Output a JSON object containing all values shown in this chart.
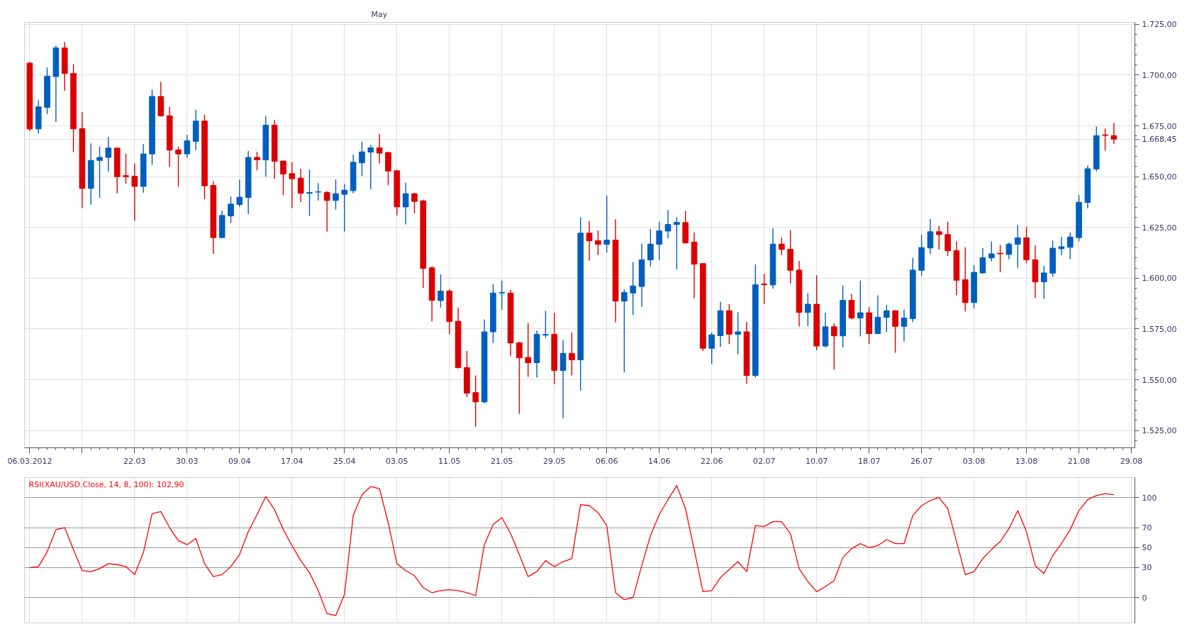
{
  "chart_data": [
    {
      "type": "candlestick",
      "categories": [
        "06.03.2012",
        null,
        null,
        null,
        null,
        null,
        null,
        null,
        null,
        null,
        null,
        null,
        "22.03",
        null,
        null,
        null,
        null,
        null,
        "30.03",
        null,
        null,
        null,
        null,
        null,
        "09.04",
        null,
        null,
        null,
        null,
        null,
        "17.04",
        null,
        null,
        null,
        null,
        null,
        "25.04",
        null,
        null,
        null,
        null,
        null,
        "03.05",
        null,
        null,
        null,
        null,
        null,
        "11.05",
        null,
        null,
        null,
        null,
        null,
        "21.05",
        null,
        null,
        null,
        null,
        null,
        "29.05",
        null,
        null,
        null,
        null,
        null,
        "06.06",
        null,
        null,
        null,
        null,
        null,
        "14.06",
        null,
        null,
        null,
        null,
        null,
        "22.06",
        null,
        null,
        null,
        null,
        null,
        "02.07",
        null,
        null,
        null,
        null,
        null,
        "10.07",
        null,
        null,
        null,
        null,
        null,
        "18.07",
        null,
        null,
        null,
        null,
        null,
        "26.07",
        null,
        null,
        null,
        null,
        null,
        "03.08",
        null,
        null,
        null,
        null,
        null,
        "13.08",
        null,
        null,
        null,
        null,
        null,
        "21.08",
        null,
        null,
        null,
        null,
        null,
        "29.08"
      ],
      "ohlc": [
        [
          1705.9,
          1706.5,
          1672.5,
          1673.5
        ],
        [
          1673.5,
          1687.7,
          1671.3,
          1684.4
        ],
        [
          1684.1,
          1703.7,
          1680.8,
          1699.5
        ],
        [
          1699.3,
          1714.6,
          1676.9,
          1713.4
        ],
        [
          1713.4,
          1716.3,
          1692.4,
          1700.8
        ],
        [
          1700.8,
          1705.4,
          1662.1,
          1673.5
        ],
        [
          1673.7,
          1681.9,
          1634.5,
          1644.2
        ],
        [
          1644.2,
          1666.4,
          1636.3,
          1658.0
        ],
        [
          1658.0,
          1664.8,
          1639.6,
          1659.5
        ],
        [
          1659.5,
          1669.6,
          1652.5,
          1664.1
        ],
        [
          1664.1,
          1664.2,
          1641.8,
          1650.0
        ],
        [
          1650.5,
          1661.3,
          1646.5,
          1650.0
        ],
        [
          1650.2,
          1656.5,
          1628.3,
          1645.2
        ],
        [
          1645.2,
          1666.0,
          1642.1,
          1661.2
        ],
        [
          1661.2,
          1692.8,
          1655.8,
          1689.5
        ],
        [
          1689.5,
          1696.7,
          1679.6,
          1680.0
        ],
        [
          1680.0,
          1684.4,
          1654.8,
          1663.1
        ],
        [
          1663.2,
          1664.8,
          1645.2,
          1661.2
        ],
        [
          1661.2,
          1670.6,
          1659.3,
          1667.7
        ],
        [
          1667.4,
          1683.0,
          1663.1,
          1677.4
        ],
        [
          1677.4,
          1680.5,
          1638.9,
          1645.5
        ],
        [
          1645.7,
          1647.8,
          1612.0,
          1620.0
        ],
        [
          1620.0,
          1633.3,
          1619.7,
          1630.9
        ],
        [
          1630.7,
          1640.3,
          1627.3,
          1636.5
        ],
        [
          1636.3,
          1648.6,
          1635.1,
          1639.9
        ],
        [
          1639.7,
          1662.6,
          1631.6,
          1659.5
        ],
        [
          1659.5,
          1662.2,
          1653.1,
          1658.3
        ],
        [
          1658.3,
          1679.8,
          1650.0,
          1675.4
        ],
        [
          1675.4,
          1677.9,
          1649.0,
          1657.6
        ],
        [
          1657.7,
          1658.0,
          1640.9,
          1651.3
        ],
        [
          1651.5,
          1657.1,
          1634.5,
          1649.0
        ],
        [
          1649.3,
          1653.9,
          1637.5,
          1641.8
        ],
        [
          1641.8,
          1653.4,
          1630.7,
          1642.2
        ],
        [
          1642.4,
          1646.8,
          1638.3,
          1642.6
        ],
        [
          1642.3,
          1642.8,
          1623.0,
          1638.3
        ],
        [
          1638.3,
          1648.7,
          1633.8,
          1641.6
        ],
        [
          1641.3,
          1646.4,
          1623.0,
          1643.4
        ],
        [
          1643.1,
          1660.9,
          1641.8,
          1657.1
        ],
        [
          1656.8,
          1667.1,
          1650.3,
          1662.2
        ],
        [
          1662.1,
          1665.7,
          1643.8,
          1664.2
        ],
        [
          1664.2,
          1671.0,
          1656.5,
          1661.6
        ],
        [
          1661.9,
          1662.3,
          1645.7,
          1652.8
        ],
        [
          1652.9,
          1653.4,
          1630.9,
          1635.1
        ],
        [
          1635.1,
          1647.1,
          1626.5,
          1641.6
        ],
        [
          1641.6,
          1642.1,
          1632.0,
          1637.8
        ],
        [
          1638.1,
          1638.7,
          1595.2,
          1604.8
        ],
        [
          1605.1,
          1605.9,
          1578.7,
          1589.1
        ],
        [
          1589.0,
          1601.9,
          1585.5,
          1593.7
        ],
        [
          1593.7,
          1594.6,
          1572.4,
          1578.7
        ],
        [
          1578.8,
          1585.5,
          1555.5,
          1556.0
        ],
        [
          1556.0,
          1564.2,
          1541.5,
          1543.4
        ],
        [
          1543.7,
          1552.1,
          1527.0,
          1539.1
        ],
        [
          1539.1,
          1579.7,
          1538.3,
          1573.6
        ],
        [
          1573.6,
          1597.1,
          1568.1,
          1592.7
        ],
        [
          1592.7,
          1598.8,
          1584.5,
          1593.0
        ],
        [
          1592.7,
          1594.2,
          1561.6,
          1568.1
        ],
        [
          1568.2,
          1568.6,
          1533.3,
          1560.8
        ],
        [
          1561.0,
          1577.9,
          1551.4,
          1558.4
        ],
        [
          1558.4,
          1574.2,
          1551.1,
          1572.4
        ],
        [
          1572.0,
          1583.9,
          1570.7,
          1572.3
        ],
        [
          1572.4,
          1582.9,
          1547.8,
          1554.6
        ],
        [
          1554.6,
          1569.5,
          1531.1,
          1563.0
        ],
        [
          1563.0,
          1573.2,
          1552.1,
          1559.8
        ],
        [
          1559.8,
          1630.0,
          1544.6,
          1622.2
        ],
        [
          1622.2,
          1628.0,
          1608.7,
          1618.4
        ],
        [
          1618.5,
          1623.5,
          1611.4,
          1616.7
        ],
        [
          1616.7,
          1640.6,
          1612.7,
          1618.8
        ],
        [
          1618.8,
          1629.0,
          1578.2,
          1588.7
        ],
        [
          1588.7,
          1594.6,
          1553.6,
          1593.0
        ],
        [
          1592.7,
          1608.0,
          1581.9,
          1596.2
        ],
        [
          1595.9,
          1617.1,
          1585.9,
          1609.1
        ],
        [
          1609.0,
          1624.3,
          1605.8,
          1616.8
        ],
        [
          1616.7,
          1627.8,
          1609.0,
          1623.3
        ],
        [
          1623.2,
          1633.6,
          1619.6,
          1626.5
        ],
        [
          1626.4,
          1630.0,
          1604.3,
          1627.5
        ],
        [
          1627.4,
          1633.1,
          1617.1,
          1617.4
        ],
        [
          1617.8,
          1622.5,
          1590.1,
          1606.9
        ],
        [
          1607.2,
          1607.4,
          1564.2,
          1565.5
        ],
        [
          1565.5,
          1573.2,
          1557.9,
          1572.1
        ],
        [
          1571.7,
          1588.4,
          1566.2,
          1584.0
        ],
        [
          1584.0,
          1587.2,
          1567.6,
          1572.4
        ],
        [
          1572.4,
          1583.3,
          1562.6,
          1573.6
        ],
        [
          1573.6,
          1578.5,
          1548.1,
          1552.1
        ],
        [
          1552.1,
          1606.8,
          1551.1,
          1596.8
        ],
        [
          1597.2,
          1602.2,
          1587.2,
          1596.8
        ],
        [
          1596.7,
          1624.6,
          1594.9,
          1616.8
        ],
        [
          1616.8,
          1619.9,
          1611.4,
          1614.2
        ],
        [
          1614.3,
          1623.6,
          1597.4,
          1603.9
        ],
        [
          1604.0,
          1608.5,
          1576.3,
          1583.2
        ],
        [
          1583.2,
          1592.7,
          1576.3,
          1587.2
        ],
        [
          1587.2,
          1601.4,
          1564.5,
          1566.6
        ],
        [
          1566.6,
          1583.0,
          1565.9,
          1576.1
        ],
        [
          1576.1,
          1577.8,
          1555.0,
          1571.6
        ],
        [
          1571.6,
          1596.4,
          1565.9,
          1589.1
        ],
        [
          1589.1,
          1592.3,
          1579.7,
          1580.4
        ],
        [
          1580.4,
          1598.8,
          1571.4,
          1583.0
        ],
        [
          1583.0,
          1585.8,
          1567.6,
          1572.7
        ],
        [
          1572.7,
          1591.6,
          1572.5,
          1580.8
        ],
        [
          1580.7,
          1586.9,
          1573.4,
          1584.0
        ],
        [
          1584.0,
          1584.2,
          1563.3,
          1576.3
        ],
        [
          1576.3,
          1584.5,
          1568.8,
          1580.4
        ],
        [
          1580.1,
          1610.1,
          1578.5,
          1604.0
        ],
        [
          1603.9,
          1621.5,
          1601.1,
          1615.1
        ],
        [
          1614.9,
          1629.1,
          1611.9,
          1622.9
        ],
        [
          1622.9,
          1625.7,
          1614.2,
          1621.5
        ],
        [
          1621.5,
          1627.8,
          1610.9,
          1613.5
        ],
        [
          1613.6,
          1618.1,
          1591.7,
          1599.0
        ],
        [
          1599.3,
          1615.2,
          1583.6,
          1588.0
        ],
        [
          1588.0,
          1606.5,
          1585.2,
          1602.9
        ],
        [
          1602.6,
          1614.9,
          1602.2,
          1610.1
        ],
        [
          1610.0,
          1618.1,
          1608.3,
          1612.0
        ],
        [
          1612.3,
          1616.4,
          1603.0,
          1612.0
        ],
        [
          1611.7,
          1617.7,
          1609.4,
          1616.8
        ],
        [
          1616.7,
          1626.1,
          1605.1,
          1619.9
        ],
        [
          1619.9,
          1625.4,
          1607.5,
          1609.1
        ],
        [
          1609.1,
          1616.2,
          1590.3,
          1598.2
        ],
        [
          1598.2,
          1606.1,
          1589.8,
          1602.6
        ],
        [
          1602.5,
          1618.5,
          1600.7,
          1614.8
        ],
        [
          1614.5,
          1620.3,
          1611.4,
          1615.5
        ],
        [
          1615.2,
          1622.5,
          1609.4,
          1620.3
        ],
        [
          1620.0,
          1641.0,
          1618.1,
          1637.4
        ],
        [
          1637.3,
          1655.5,
          1634.4,
          1653.9
        ],
        [
          1653.8,
          1674.7,
          1652.6,
          1670.2
        ],
        [
          1670.6,
          1673.7,
          1662.8,
          1670.3
        ],
        [
          1670.2,
          1676.4,
          1666.1,
          1668.45
        ],
        null,
        null
      ],
      "colors": [
        "#dc0000",
        "#005fbe",
        "#005fbe",
        "#005fbe",
        "#dc0000",
        "#dc0000",
        "#dc0000",
        "#005fbe",
        "#005fbe",
        "#005fbe",
        "#dc0000",
        "#dc0000",
        "#dc0000",
        "#005fbe",
        "#005fbe",
        "#dc0000",
        "#dc0000",
        "#dc0000",
        "#005fbe",
        "#005fbe",
        "#dc0000",
        "#dc0000",
        "#005fbe",
        "#005fbe",
        "#005fbe",
        "#005fbe",
        "#dc0000",
        "#005fbe",
        "#dc0000",
        "#dc0000",
        "#dc0000",
        "#dc0000",
        "#005fbe",
        "#005fbe",
        "#dc0000",
        "#005fbe",
        "#005fbe",
        "#005fbe",
        "#005fbe",
        "#005fbe",
        "#dc0000",
        "#dc0000",
        "#dc0000",
        "#005fbe",
        "#dc0000",
        "#dc0000",
        "#dc0000",
        "#005fbe",
        "#dc0000",
        "#dc0000",
        "#dc0000",
        "#dc0000",
        "#005fbe",
        "#005fbe",
        "#005fbe",
        "#dc0000",
        "#dc0000",
        "#dc0000",
        "#005fbe",
        "#005fbe",
        "#dc0000",
        "#005fbe",
        "#dc0000",
        "#005fbe",
        "#dc0000",
        "#dc0000",
        "#005fbe",
        "#dc0000",
        "#005fbe",
        "#005fbe",
        "#005fbe",
        "#005fbe",
        "#005fbe",
        "#005fbe",
        "#005fbe",
        "#dc0000",
        "#dc0000",
        "#dc0000",
        "#005fbe",
        "#005fbe",
        "#dc0000",
        "#005fbe",
        "#dc0000",
        "#005fbe",
        "#dc0000",
        "#005fbe",
        "#dc0000",
        "#dc0000",
        "#dc0000",
        "#005fbe",
        "#dc0000",
        "#005fbe",
        "#dc0000",
        "#005fbe",
        "#dc0000",
        "#005fbe",
        "#dc0000",
        "#005fbe",
        "#005fbe",
        "#dc0000",
        "#005fbe",
        "#005fbe",
        "#005fbe",
        "#005fbe",
        "#dc0000",
        "#dc0000",
        "#dc0000",
        "#dc0000",
        "#005fbe",
        "#005fbe",
        "#005fbe",
        "#dc0000",
        "#005fbe",
        "#005fbe",
        "#dc0000",
        "#dc0000",
        "#005fbe",
        "#005fbe",
        "#005fbe",
        "#005fbe",
        "#005fbe",
        "#005fbe",
        "#005fbe",
        "#dc0000",
        "#dc0000",
        null,
        null
      ],
      "ylim": [
        1516.5,
        1726
      ],
      "yticks": [
        {
          "value": 1520,
          "label": null
        },
        {
          "value": 1525,
          "label": "1.525,00"
        },
        {
          "value": 1530,
          "label": null
        },
        {
          "value": 1535,
          "label": null
        },
        {
          "value": 1540,
          "label": null
        },
        {
          "value": 1545,
          "label": null
        },
        {
          "value": 1550,
          "label": "1.550,00"
        },
        {
          "value": 1555,
          "label": null
        },
        {
          "value": 1560,
          "label": null
        },
        {
          "value": 1565,
          "label": null
        },
        {
          "value": 1570,
          "label": null
        },
        {
          "value": 1575,
          "label": "1.575,00"
        },
        {
          "value": 1580,
          "label": null
        },
        {
          "value": 1585,
          "label": null
        },
        {
          "value": 1590,
          "label": null
        },
        {
          "value": 1595,
          "label": null
        },
        {
          "value": 1600,
          "label": "1.600,00"
        },
        {
          "value": 1605,
          "label": null
        },
        {
          "value": 1610,
          "label": null
        },
        {
          "value": 1615,
          "label": null
        },
        {
          "value": 1620,
          "label": null
        },
        {
          "value": 1625,
          "label": "1.625,00"
        },
        {
          "value": 1630,
          "label": null
        },
        {
          "value": 1635,
          "label": null
        },
        {
          "value": 1640,
          "label": null
        },
        {
          "value": 1645,
          "label": null
        },
        {
          "value": 1650,
          "label": "1.650,00"
        },
        {
          "value": 1655,
          "label": null
        },
        {
          "value": 1660,
          "label": null
        },
        {
          "value": 1665,
          "label": null
        },
        {
          "value": 1668.45,
          "label": "1.668,45"
        },
        {
          "value": 1670,
          "label": null
        },
        {
          "value": 1675,
          "label": "1.675,00"
        },
        {
          "value": 1680,
          "label": null
        },
        {
          "value": 1685,
          "label": null
        },
        {
          "value": 1690,
          "label": null
        },
        {
          "value": 1695,
          "label": null
        },
        {
          "value": 1700,
          "label": "1.700,00"
        },
        {
          "value": 1705,
          "label": null
        },
        {
          "value": 1710,
          "label": null
        },
        {
          "value": 1715,
          "label": null
        },
        {
          "value": 1720,
          "label": null
        },
        {
          "value": 1725,
          "label": "1.725,00"
        }
      ],
      "grid": true,
      "annotations": [
        "May"
      ]
    },
    {
      "type": "line",
      "categories": [
        "06.03.2012",
        null,
        null,
        null,
        null,
        null,
        null,
        null,
        null,
        null,
        null,
        null,
        "22.03",
        null,
        null,
        null,
        null,
        null,
        "30.03",
        null,
        null,
        null,
        null,
        null,
        "09.04",
        null,
        null,
        null,
        null,
        null,
        "17.04",
        null,
        null,
        null,
        null,
        null,
        "25.04",
        null,
        null,
        null,
        null,
        null,
        "03.05",
        null,
        null,
        null,
        null,
        null,
        "11.05",
        null,
        null,
        null,
        null,
        null,
        "21.05",
        null,
        null,
        null,
        null,
        null,
        "29.05",
        null,
        null,
        null,
        null,
        null,
        "06.06",
        null,
        null,
        null,
        null,
        null,
        "14.06",
        null,
        null,
        null,
        null,
        null,
        "22.06",
        null,
        null,
        null,
        null,
        null,
        "02.07",
        null,
        null,
        null,
        null,
        null,
        "10.07",
        null,
        null,
        null,
        null,
        null,
        "18.07",
        null,
        null,
        null,
        null,
        null,
        "26.07",
        null,
        null,
        null,
        null,
        null,
        "03.08",
        null,
        null,
        null,
        null,
        null,
        "13.08",
        null,
        null,
        null,
        null,
        null,
        "21.08",
        null,
        null,
        null,
        null,
        null,
        "29.08"
      ],
      "series": [
        {
          "name": "RSI(XAU/USD.Close, 14, 8, 100): 102,90",
          "color": "#ff0000",
          "values": [
            30,
            31,
            46,
            68,
            70,
            48,
            27,
            26,
            29,
            34,
            33,
            31,
            23,
            45,
            84,
            86,
            70,
            57,
            53,
            59,
            34,
            21,
            23,
            31,
            43,
            66,
            83,
            101,
            88,
            68,
            52,
            37,
            25,
            7,
            -16,
            -18,
            3,
            82,
            103,
            111,
            109,
            75,
            34,
            27,
            22,
            10,
            5,
            7,
            8,
            7,
            5,
            2,
            53,
            73,
            80,
            64,
            43,
            21,
            26,
            37,
            31,
            36,
            39,
            93,
            92,
            85,
            72,
            5,
            -2,
            0,
            32,
            62,
            83,
            98,
            112,
            89,
            48,
            6,
            7,
            20,
            28,
            36,
            26,
            72,
            71,
            76,
            76,
            64,
            29,
            16,
            6,
            11,
            17,
            40,
            49,
            54,
            50,
            52,
            58,
            54,
            54,
            82,
            92,
            97,
            100,
            89,
            56,
            23,
            26,
            39,
            48,
            56,
            69,
            87,
            66,
            32,
            24,
            42,
            54,
            68,
            87,
            98,
            102,
            104,
            102.9,
            null,
            null
          ]
        }
      ],
      "ylim": [
        -26,
        120
      ],
      "yticks": [
        0,
        30,
        50,
        70,
        100
      ],
      "grid": true,
      "legend": "top left",
      "tick_labels": "y"
    }
  ]
}
